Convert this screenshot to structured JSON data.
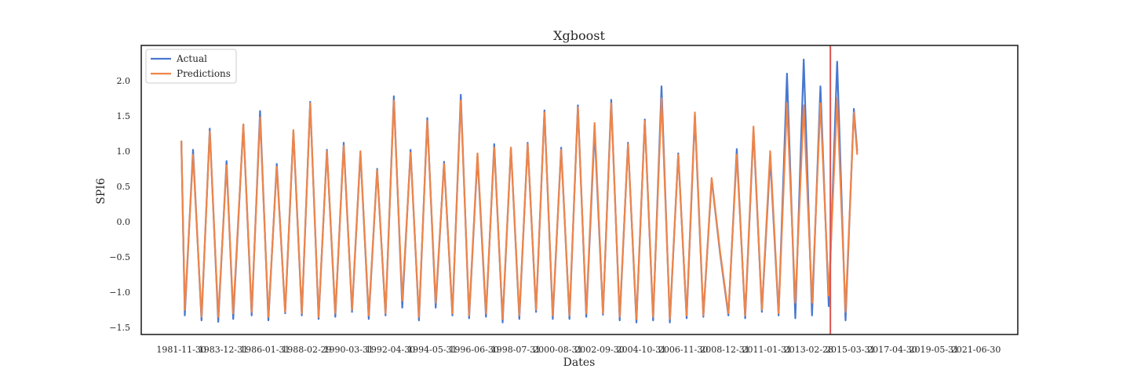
{
  "chart_data": {
    "type": "line",
    "title": "Xgboost",
    "xlabel": "Dates",
    "ylabel": "SPI6",
    "ylim": [
      -1.6,
      2.5
    ],
    "xlim": [
      "1979-12-01",
      "2023-08-01"
    ],
    "grid": false,
    "legend_position": "top-left",
    "yticks": [
      -1.5,
      -1.0,
      -0.5,
      0.0,
      0.5,
      1.0,
      1.5,
      2.0
    ],
    "ytick_labels": [
      "−1.5",
      "−1.0",
      "−0.5",
      "0.0",
      "0.5",
      "1.0",
      "1.5",
      "2.0"
    ],
    "xticks": [
      "1981-11-30",
      "1983-12-31",
      "1986-01-31",
      "1988-02-29",
      "1990-03-31",
      "1992-04-30",
      "1994-05-31",
      "1996-06-30",
      "1998-07-31",
      "2000-08-31",
      "2002-09-30",
      "2004-10-31",
      "2006-11-30",
      "2008-12-31",
      "2011-01-31",
      "2013-02-28",
      "2015-03-31",
      "2017-04-30",
      "2019-05-31",
      "2021-06-30"
    ],
    "vline": {
      "x": "2014-03-31",
      "color": "#d9534f"
    },
    "series": [
      {
        "name": "Actual",
        "color": "#4878d0",
        "points": [
          [
            "1981-11-30",
            1.15
          ],
          [
            "1982-02-01",
            -1.33
          ],
          [
            "1982-07-01",
            1.02
          ],
          [
            "1982-12-01",
            -1.4
          ],
          [
            "1983-05-01",
            1.32
          ],
          [
            "1983-10-01",
            -1.42
          ],
          [
            "1984-03-01",
            0.86
          ],
          [
            "1984-07-01",
            -1.38
          ],
          [
            "1985-01-01",
            1.38
          ],
          [
            "1985-06-01",
            -1.33
          ],
          [
            "1985-11-01",
            1.57
          ],
          [
            "1986-04-01",
            -1.4
          ],
          [
            "1986-09-01",
            0.82
          ],
          [
            "1987-02-01",
            -1.3
          ],
          [
            "1987-07-01",
            1.28
          ],
          [
            "1987-12-01",
            -1.33
          ],
          [
            "1988-05-01",
            1.7
          ],
          [
            "1988-10-01",
            -1.38
          ],
          [
            "1989-03-01",
            1.02
          ],
          [
            "1989-08-01",
            -1.35
          ],
          [
            "1990-01-01",
            1.12
          ],
          [
            "1990-06-01",
            -1.28
          ],
          [
            "1990-11-01",
            0.98
          ],
          [
            "1991-04-01",
            -1.38
          ],
          [
            "1991-09-01",
            0.75
          ],
          [
            "1992-02-01",
            -1.33
          ],
          [
            "1992-07-01",
            1.78
          ],
          [
            "1992-12-01",
            -1.22
          ],
          [
            "1993-05-01",
            1.02
          ],
          [
            "1993-10-01",
            -1.4
          ],
          [
            "1994-03-01",
            1.47
          ],
          [
            "1994-08-01",
            -1.22
          ],
          [
            "1995-01-01",
            0.85
          ],
          [
            "1995-06-01",
            -1.33
          ],
          [
            "1995-11-01",
            1.8
          ],
          [
            "1996-04-01",
            -1.37
          ],
          [
            "1996-09-01",
            0.93
          ],
          [
            "1997-02-01",
            -1.35
          ],
          [
            "1997-07-01",
            1.1
          ],
          [
            "1997-12-01",
            -1.43
          ],
          [
            "1998-05-01",
            1.05
          ],
          [
            "1998-10-01",
            -1.38
          ],
          [
            "1999-03-01",
            1.12
          ],
          [
            "1999-08-01",
            -1.28
          ],
          [
            "2000-01-01",
            1.58
          ],
          [
            "2000-06-01",
            -1.38
          ],
          [
            "2000-11-01",
            1.05
          ],
          [
            "2001-04-01",
            -1.38
          ],
          [
            "2001-09-01",
            1.65
          ],
          [
            "2002-02-01",
            -1.35
          ],
          [
            "2002-07-01",
            1.3
          ],
          [
            "2002-12-01",
            -1.32
          ],
          [
            "2003-05-01",
            1.73
          ],
          [
            "2003-10-01",
            -1.4
          ],
          [
            "2004-03-01",
            1.12
          ],
          [
            "2004-08-01",
            -1.43
          ],
          [
            "2005-01-01",
            1.45
          ],
          [
            "2005-06-01",
            -1.4
          ],
          [
            "2005-11-01",
            1.92
          ],
          [
            "2006-04-01",
            -1.43
          ],
          [
            "2006-09-01",
            0.97
          ],
          [
            "2007-02-01",
            -1.37
          ],
          [
            "2007-07-01",
            1.5
          ],
          [
            "2007-12-01",
            -1.35
          ],
          [
            "2008-05-01",
            0.6
          ],
          [
            "2008-10-01",
            -0.45
          ],
          [
            "2009-03-01",
            -1.33
          ],
          [
            "2009-08-01",
            1.03
          ],
          [
            "2010-01-01",
            -1.37
          ],
          [
            "2010-06-01",
            1.3
          ],
          [
            "2010-11-01",
            -1.28
          ],
          [
            "2011-04-01",
            0.9
          ],
          [
            "2011-09-01",
            -1.33
          ],
          [
            "2012-02-01",
            2.1
          ],
          [
            "2012-07-01",
            -1.37
          ],
          [
            "2012-12-01",
            2.3
          ],
          [
            "2013-05-01",
            -1.33
          ],
          [
            "2013-10-01",
            1.92
          ],
          [
            "2014-03-01",
            -1.2
          ],
          [
            "2014-08-01",
            2.27
          ],
          [
            "2015-01-01",
            -1.4
          ],
          [
            "2015-06-01",
            1.6
          ],
          [
            "2015-08-01",
            1.0
          ]
        ]
      },
      {
        "name": "Predictions",
        "color": "#ee854a",
        "points": [
          [
            "1981-11-30",
            1.15
          ],
          [
            "1982-02-01",
            -1.25
          ],
          [
            "1982-07-01",
            0.95
          ],
          [
            "1982-12-01",
            -1.35
          ],
          [
            "1983-05-01",
            1.28
          ],
          [
            "1983-10-01",
            -1.35
          ],
          [
            "1984-03-01",
            0.8
          ],
          [
            "1984-07-01",
            -1.3
          ],
          [
            "1985-01-01",
            1.38
          ],
          [
            "1985-06-01",
            -1.28
          ],
          [
            "1985-11-01",
            1.48
          ],
          [
            "1986-04-01",
            -1.35
          ],
          [
            "1986-09-01",
            0.78
          ],
          [
            "1987-02-01",
            -1.28
          ],
          [
            "1987-07-01",
            1.3
          ],
          [
            "1987-12-01",
            -1.3
          ],
          [
            "1988-05-01",
            1.68
          ],
          [
            "1988-10-01",
            -1.35
          ],
          [
            "1989-03-01",
            1.0
          ],
          [
            "1989-08-01",
            -1.3
          ],
          [
            "1990-01-01",
            1.08
          ],
          [
            "1990-06-01",
            -1.25
          ],
          [
            "1990-11-01",
            1.0
          ],
          [
            "1991-04-01",
            -1.33
          ],
          [
            "1991-09-01",
            0.73
          ],
          [
            "1992-02-01",
            -1.3
          ],
          [
            "1992-07-01",
            1.72
          ],
          [
            "1992-12-01",
            -1.12
          ],
          [
            "1993-05-01",
            0.98
          ],
          [
            "1993-10-01",
            -1.35
          ],
          [
            "1994-03-01",
            1.43
          ],
          [
            "1994-08-01",
            -1.15
          ],
          [
            "1995-01-01",
            0.82
          ],
          [
            "1995-06-01",
            -1.3
          ],
          [
            "1995-11-01",
            1.72
          ],
          [
            "1996-04-01",
            -1.33
          ],
          [
            "1996-09-01",
            0.97
          ],
          [
            "1997-02-01",
            -1.3
          ],
          [
            "1997-07-01",
            1.05
          ],
          [
            "1997-12-01",
            -1.38
          ],
          [
            "1998-05-01",
            1.05
          ],
          [
            "1998-10-01",
            -1.33
          ],
          [
            "1999-03-01",
            1.1
          ],
          [
            "1999-08-01",
            -1.25
          ],
          [
            "2000-01-01",
            1.55
          ],
          [
            "2000-06-01",
            -1.33
          ],
          [
            "2000-11-01",
            1.02
          ],
          [
            "2001-04-01",
            -1.33
          ],
          [
            "2001-09-01",
            1.62
          ],
          [
            "2002-02-01",
            -1.3
          ],
          [
            "2002-07-01",
            1.4
          ],
          [
            "2002-12-01",
            -1.3
          ],
          [
            "2003-05-01",
            1.68
          ],
          [
            "2003-10-01",
            -1.35
          ],
          [
            "2004-03-01",
            1.1
          ],
          [
            "2004-08-01",
            -1.38
          ],
          [
            "2005-01-01",
            1.43
          ],
          [
            "2005-06-01",
            -1.35
          ],
          [
            "2005-11-01",
            1.75
          ],
          [
            "2006-04-01",
            -1.38
          ],
          [
            "2006-09-01",
            0.95
          ],
          [
            "2007-02-01",
            -1.33
          ],
          [
            "2007-07-01",
            1.55
          ],
          [
            "2007-12-01",
            -1.33
          ],
          [
            "2008-05-01",
            0.62
          ],
          [
            "2008-10-01",
            -0.42
          ],
          [
            "2009-03-01",
            -1.3
          ],
          [
            "2009-08-01",
            0.95
          ],
          [
            "2010-01-01",
            -1.33
          ],
          [
            "2010-06-01",
            1.35
          ],
          [
            "2010-11-01",
            -1.25
          ],
          [
            "2011-04-01",
            1.0
          ],
          [
            "2011-09-01",
            -1.3
          ],
          [
            "2012-02-01",
            1.68
          ],
          [
            "2012-07-01",
            -1.15
          ],
          [
            "2012-12-01",
            1.65
          ],
          [
            "2013-05-01",
            -1.15
          ],
          [
            "2013-10-01",
            1.68
          ],
          [
            "2014-03-01",
            -1.05
          ],
          [
            "2014-08-01",
            1.75
          ],
          [
            "2015-01-01",
            -1.28
          ],
          [
            "2015-06-01",
            1.55
          ],
          [
            "2015-08-01",
            0.95
          ]
        ]
      }
    ]
  }
}
